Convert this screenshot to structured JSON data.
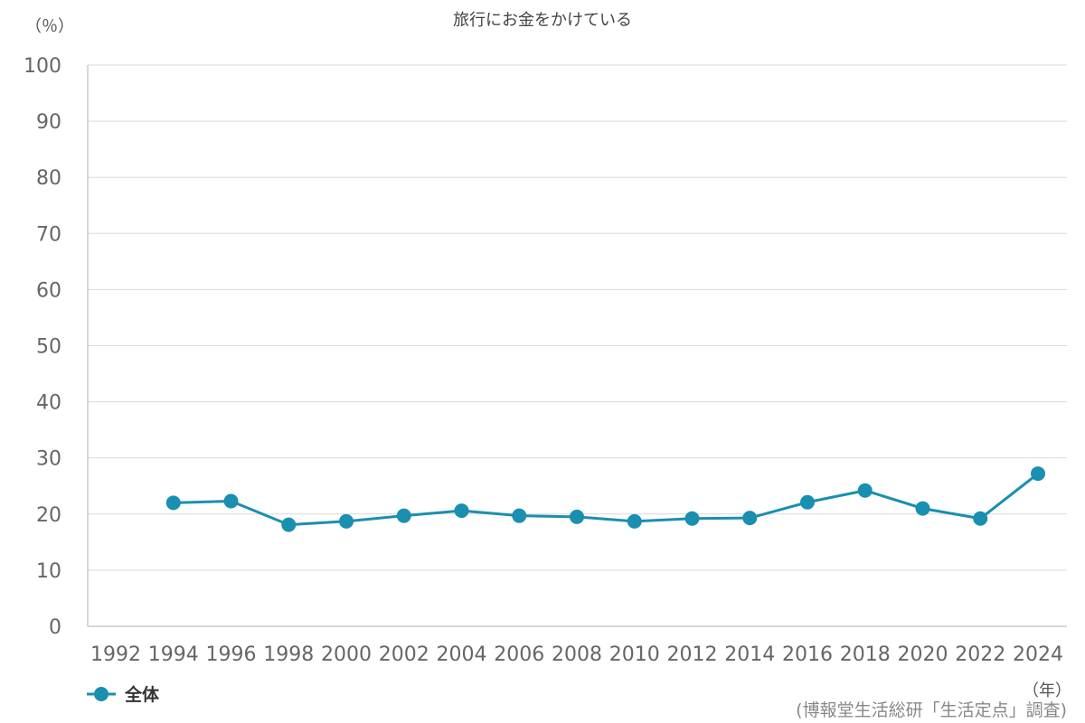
{
  "chart_data": {
    "type": "line",
    "title": "旅行にお金をかけている",
    "ylabel": "（％）",
    "xlabel": "（年）",
    "ylim": [
      0,
      100
    ],
    "yticks": [
      0,
      10,
      20,
      30,
      40,
      50,
      60,
      70,
      80,
      90,
      100
    ],
    "categories": [
      "1992",
      "1994",
      "1996",
      "1998",
      "2000",
      "2002",
      "2004",
      "2006",
      "2008",
      "2010",
      "2012",
      "2014",
      "2016",
      "2018",
      "2020",
      "2022",
      "2024"
    ],
    "series": [
      {
        "name": "全体",
        "color": "#1a8fb0",
        "values": [
          null,
          22.0,
          22.3,
          18.1,
          18.7,
          19.7,
          20.6,
          19.7,
          19.5,
          18.7,
          19.2,
          19.3,
          22.1,
          24.2,
          21.0,
          19.2,
          27.2
        ]
      }
    ],
    "grid": true,
    "legend_position": "bottom-left",
    "source": "(博報堂生活総研「生活定点」調査)"
  }
}
